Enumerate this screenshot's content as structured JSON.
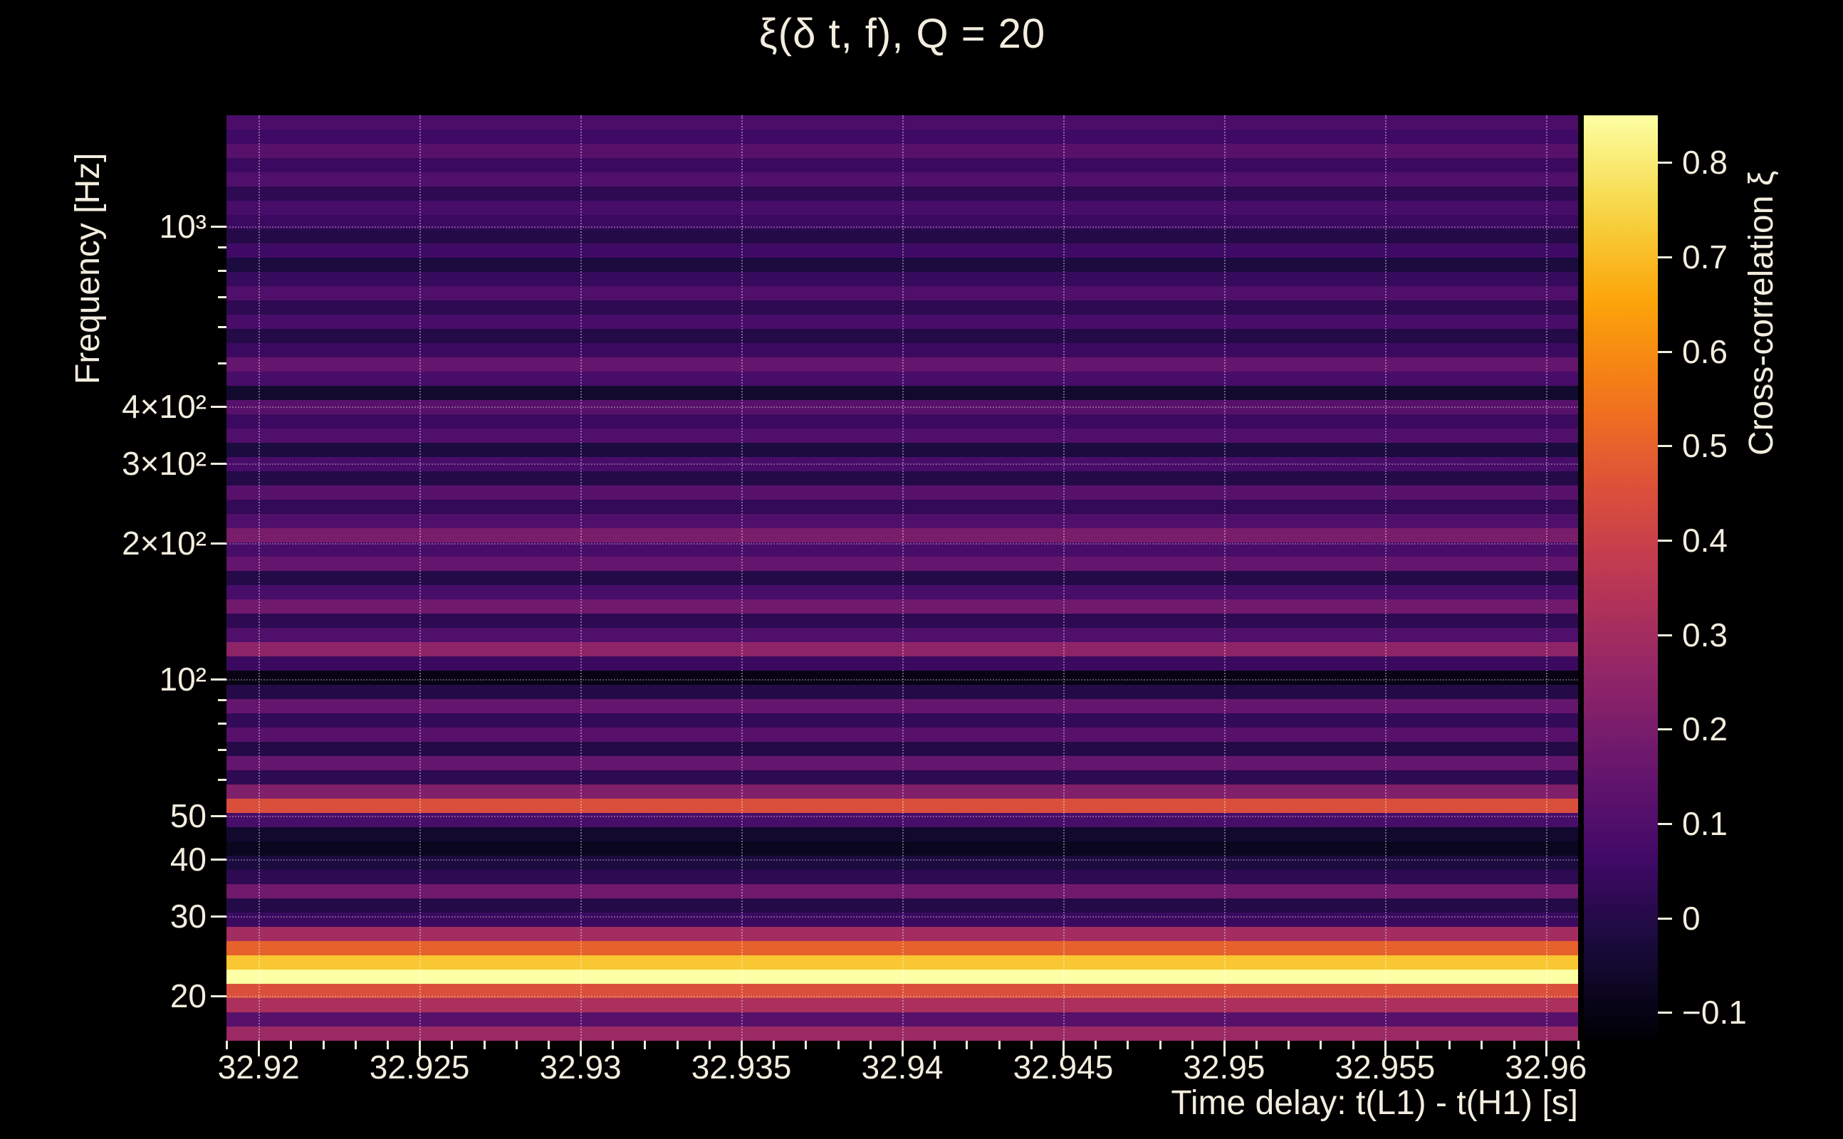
{
  "title": "ξ(δ t, f), Q = 20",
  "axes": {
    "xlabel": "Time delay: t(L1) - t(H1) [s]",
    "ylabel": "Frequency [Hz]",
    "colorbar_label": "Cross-correlation ξ"
  },
  "colors": {
    "background": "#000000",
    "text": "#f2edde",
    "grid": "rgba(255,255,255,0.38)"
  },
  "chart_data": {
    "type": "heatmap",
    "title": "ξ(δ t, f), Q = 20",
    "xlabel": "Time delay: t(L1) - t(H1) [s]",
    "ylabel": "Frequency [Hz]",
    "colorbar_label": "Cross-correlation ξ",
    "colormap": "inferno",
    "x_range_s": [
      32.919,
      32.961
    ],
    "y_scale": "log",
    "y_range_hz": [
      15.9,
      1760
    ],
    "value_range": [
      -0.13,
      0.85
    ],
    "grid": true,
    "x_ticks": [
      {
        "value": 32.92,
        "label": "32.92"
      },
      {
        "value": 32.925,
        "label": "32.925"
      },
      {
        "value": 32.93,
        "label": "32.93"
      },
      {
        "value": 32.935,
        "label": "32.935"
      },
      {
        "value": 32.94,
        "label": "32.94"
      },
      {
        "value": 32.945,
        "label": "32.945"
      },
      {
        "value": 32.95,
        "label": "32.95"
      },
      {
        "value": 32.955,
        "label": "32.955"
      },
      {
        "value": 32.96,
        "label": "32.96"
      }
    ],
    "x_minor_step_s": 0.001,
    "y_ticks": [
      {
        "hz": 20,
        "label": "20"
      },
      {
        "hz": 30,
        "label": "30"
      },
      {
        "hz": 40,
        "label": "40"
      },
      {
        "hz": 50,
        "label": "50"
      },
      {
        "hz": 100,
        "label": "10²"
      },
      {
        "hz": 200,
        "label": "2×10²"
      },
      {
        "hz": 300,
        "label": "3×10²"
      },
      {
        "hz": 400,
        "label": "4×10²"
      },
      {
        "hz": 1000,
        "label": "10³"
      }
    ],
    "y_minor_ticks_hz": [
      60,
      70,
      80,
      90,
      500,
      600,
      700,
      800,
      900
    ],
    "colorbar_ticks": [
      {
        "value": 0.8,
        "label": "0.8"
      },
      {
        "value": 0.7,
        "label": "0.7"
      },
      {
        "value": 0.6,
        "label": "0.6"
      },
      {
        "value": 0.5,
        "label": "0.5"
      },
      {
        "value": 0.4,
        "label": "0.4"
      },
      {
        "value": 0.3,
        "label": "0.3"
      },
      {
        "value": 0.2,
        "label": "0.2"
      },
      {
        "value": 0.1,
        "label": "0.1"
      },
      {
        "value": 0,
        "label": "0"
      },
      {
        "value": -0.1,
        "label": "−0.1"
      }
    ],
    "rows_bottom_to_top": {
      "freq_hz": [
        16.0,
        17.2,
        18.5,
        19.9,
        21.4,
        23.0,
        24.7,
        26.5,
        28.5,
        30.6,
        32.9,
        35.4,
        38.0,
        40.9,
        43.9,
        47.2,
        50.8,
        54.6,
        58.7,
        63.1,
        67.8,
        72.9,
        78.3,
        84.2,
        90.5,
        97.3,
        104.6,
        112.4,
        120.8,
        129.9,
        139.6,
        150.1,
        161.3,
        173.4,
        186.4,
        200.3,
        215.3,
        231.5,
        248.8,
        267.4,
        287.5,
        309.0,
        332.2,
        357.1,
        383.8,
        412.6,
        443.5,
        476.7,
        512.4,
        550.8,
        592.1,
        636.4,
        684.1,
        735.3,
        790.4,
        849.6,
        913.2,
        981.6,
        1055.2,
        1134.2,
        1219.2,
        1310.5,
        1408.7,
        1514.2,
        1627.6
      ],
      "xi": [
        0.28,
        0.12,
        0.32,
        0.45,
        0.85,
        0.72,
        0.5,
        0.3,
        0.05,
        0.0,
        0.18,
        0.02,
        -0.02,
        -0.08,
        -0.05,
        0.08,
        0.45,
        0.22,
        0.02,
        0.15,
        0.0,
        0.12,
        0.03,
        0.15,
        0.0,
        -0.1,
        0.05,
        0.25,
        0.1,
        0.02,
        0.18,
        0.08,
        0.0,
        0.15,
        0.08,
        0.2,
        0.1,
        0.03,
        0.12,
        0.0,
        0.08,
        -0.02,
        0.1,
        0.05,
        0.12,
        -0.05,
        0.08,
        0.15,
        0.05,
        0.0,
        0.08,
        0.02,
        0.1,
        0.04,
        -0.02,
        0.06,
        0.0,
        0.05,
        0.08,
        0.02,
        0.1,
        0.05,
        0.12,
        0.06,
        0.09
      ]
    }
  }
}
